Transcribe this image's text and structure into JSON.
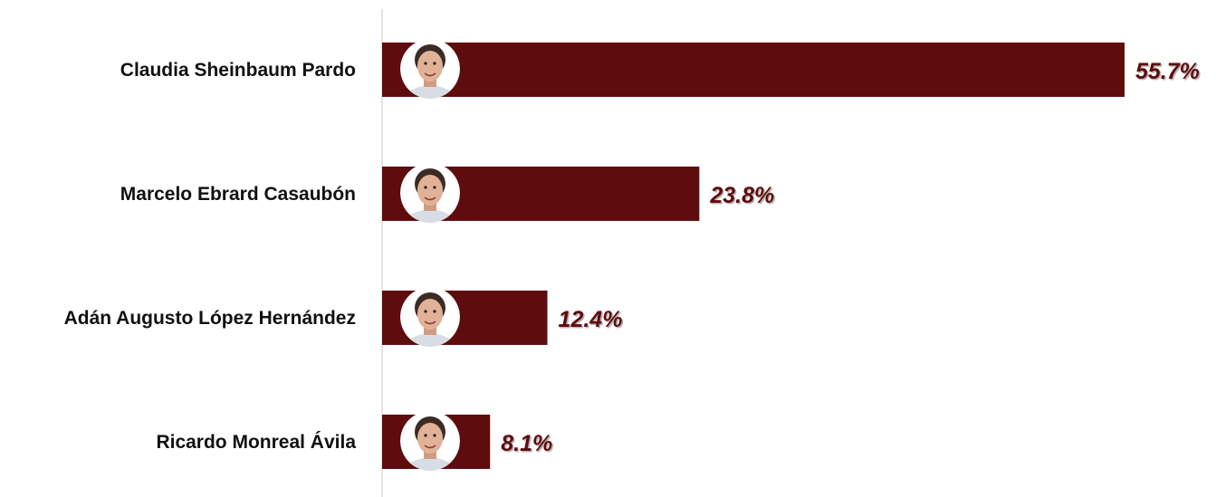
{
  "chart_data": {
    "type": "bar",
    "orientation": "horizontal",
    "categories": [
      "Claudia Sheinbaum Pardo",
      "Marcelo Ebrard Casaubón",
      "Adán Augusto López Hernández",
      "Ricardo Monreal Ávila"
    ],
    "values": [
      55.7,
      23.8,
      12.4,
      8.1
    ],
    "value_labels": [
      "55.7%",
      "23.8%",
      "12.4%",
      "8.1%"
    ],
    "xlim": [
      0,
      55.7
    ],
    "grid": false,
    "legend": "none"
  },
  "colors": {
    "bar": "#5e0c0e",
    "value_text": "#5e0c0e",
    "category_text": "#111111",
    "axis": "#c8c8c8"
  },
  "icons": [
    "person-photo-icon",
    "person-photo-icon",
    "person-photo-icon",
    "person-photo-icon"
  ]
}
